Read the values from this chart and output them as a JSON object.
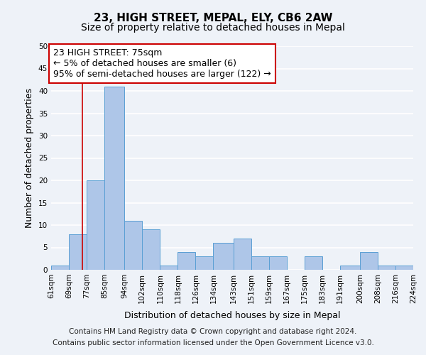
{
  "title": "23, HIGH STREET, MEPAL, ELY, CB6 2AW",
  "subtitle": "Size of property relative to detached houses in Mepal",
  "xlabel": "Distribution of detached houses by size in Mepal",
  "ylabel": "Number of detached properties",
  "footnote1": "Contains HM Land Registry data © Crown copyright and database right 2024.",
  "footnote2": "Contains public sector information licensed under the Open Government Licence v3.0.",
  "bar_edges": [
    61,
    69,
    77,
    85,
    94,
    102,
    110,
    118,
    126,
    134,
    143,
    151,
    159,
    167,
    175,
    183,
    191,
    200,
    208,
    216,
    224
  ],
  "bar_heights": [
    1,
    8,
    20,
    41,
    11,
    9,
    1,
    4,
    3,
    6,
    7,
    3,
    3,
    0,
    3,
    0,
    1,
    4,
    1,
    1
  ],
  "bar_color": "#aec6e8",
  "bar_edge_color": "#5a9fd4",
  "property_line_x": 75,
  "property_line_color": "#cc0000",
  "annotation_line1": "23 HIGH STREET: 75sqm",
  "annotation_line2": "← 5% of detached houses are smaller (6)",
  "annotation_line3": "95% of semi-detached houses are larger (122) →",
  "annotation_box_facecolor": "white",
  "annotation_box_edgecolor": "#cc0000",
  "ylim": [
    0,
    50
  ],
  "yticks": [
    0,
    5,
    10,
    15,
    20,
    25,
    30,
    35,
    40,
    45,
    50
  ],
  "tick_labels": [
    "61sqm",
    "69sqm",
    "77sqm",
    "85sqm",
    "94sqm",
    "102sqm",
    "110sqm",
    "118sqm",
    "126sqm",
    "134sqm",
    "143sqm",
    "151sqm",
    "159sqm",
    "167sqm",
    "175sqm",
    "183sqm",
    "191sqm",
    "200sqm",
    "208sqm",
    "216sqm",
    "224sqm"
  ],
  "background_color": "#eef2f8",
  "grid_color": "white",
  "title_fontsize": 11,
  "subtitle_fontsize": 10,
  "axis_label_fontsize": 9,
  "tick_fontsize": 7.5,
  "annotation_fontsize": 9,
  "footnote_fontsize": 7.5
}
